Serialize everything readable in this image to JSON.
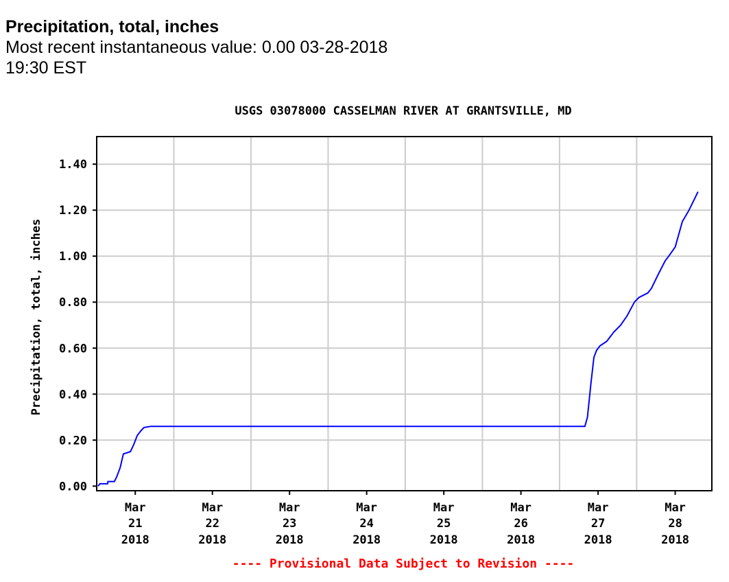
{
  "header": {
    "parameter": "Precipitation, total, inches",
    "recent_value": "Most recent instantaneous value: 0.00 03-28-2018   19:30 EST"
  },
  "chart_data": {
    "type": "line",
    "title": "USGS 03078000 CASSELMAN RIVER AT GRANTSVILLE, MD",
    "ylabel": "Precipitation, total, inches",
    "xlabel": "",
    "ylim": [
      -0.02,
      1.52
    ],
    "xlim_hours": [
      0,
      191.4
    ],
    "y_ticks": [
      {
        "v": 0,
        "label": "0.00"
      },
      {
        "v": 0.2,
        "label": "0.20"
      },
      {
        "v": 0.4,
        "label": "0.40"
      },
      {
        "v": 0.6,
        "label": "0.60"
      },
      {
        "v": 0.8,
        "label": "0.80"
      },
      {
        "v": 1.0,
        "label": "1.00"
      },
      {
        "v": 1.2,
        "label": "1.20"
      },
      {
        "v": 1.4,
        "label": "1.40"
      }
    ],
    "x_ticks": [
      {
        "h": 12,
        "month": "Mar",
        "day": "21",
        "year": "2018"
      },
      {
        "h": 36,
        "month": "Mar",
        "day": "22",
        "year": "2018"
      },
      {
        "h": 60,
        "month": "Mar",
        "day": "23",
        "year": "2018"
      },
      {
        "h": 84,
        "month": "Mar",
        "day": "24",
        "year": "2018"
      },
      {
        "h": 108,
        "month": "Mar",
        "day": "25",
        "year": "2018"
      },
      {
        "h": 132,
        "month": "Mar",
        "day": "26",
        "year": "2018"
      },
      {
        "h": 156,
        "month": "Mar",
        "day": "27",
        "year": "2018"
      },
      {
        "h": 180,
        "month": "Mar",
        "day": "28",
        "year": "2018"
      }
    ],
    "x_grid_hours": [
      24,
      48,
      72,
      96,
      120,
      144,
      168
    ],
    "series": [
      {
        "name": "Precipitation, total, inches",
        "color": "#0000ff",
        "points_hours_value": [
          [
            0.4,
            0.0
          ],
          [
            1,
            0.01
          ],
          [
            3.4,
            0.01
          ],
          [
            3.5,
            0.02
          ],
          [
            5.5,
            0.02
          ],
          [
            6.2,
            0.04
          ],
          [
            7.3,
            0.08
          ],
          [
            8.3,
            0.14
          ],
          [
            10.5,
            0.15
          ],
          [
            11.5,
            0.18
          ],
          [
            12.6,
            0.22
          ],
          [
            13.7,
            0.24
          ],
          [
            14.7,
            0.255
          ],
          [
            16.9,
            0.26
          ],
          [
            151.9,
            0.26
          ],
          [
            152.7,
            0.3
          ],
          [
            153.8,
            0.45
          ],
          [
            154.7,
            0.56
          ],
          [
            155.5,
            0.59
          ],
          [
            156.6,
            0.61
          ],
          [
            158.7,
            0.63
          ],
          [
            160.9,
            0.67
          ],
          [
            163,
            0.7
          ],
          [
            165,
            0.74
          ],
          [
            167.3,
            0.8
          ],
          [
            168.7,
            0.82
          ],
          [
            171.5,
            0.84
          ],
          [
            172.6,
            0.86
          ],
          [
            174.7,
            0.92
          ],
          [
            176.9,
            0.98
          ],
          [
            178,
            1.0
          ],
          [
            180,
            1.04
          ],
          [
            181,
            1.09
          ],
          [
            182.2,
            1.15
          ],
          [
            184.3,
            1.2
          ],
          [
            187.1,
            1.28
          ]
        ]
      }
    ],
    "footnote": "---- Provisional Data Subject to Revision ----",
    "footnote_color": "#ff0000"
  }
}
